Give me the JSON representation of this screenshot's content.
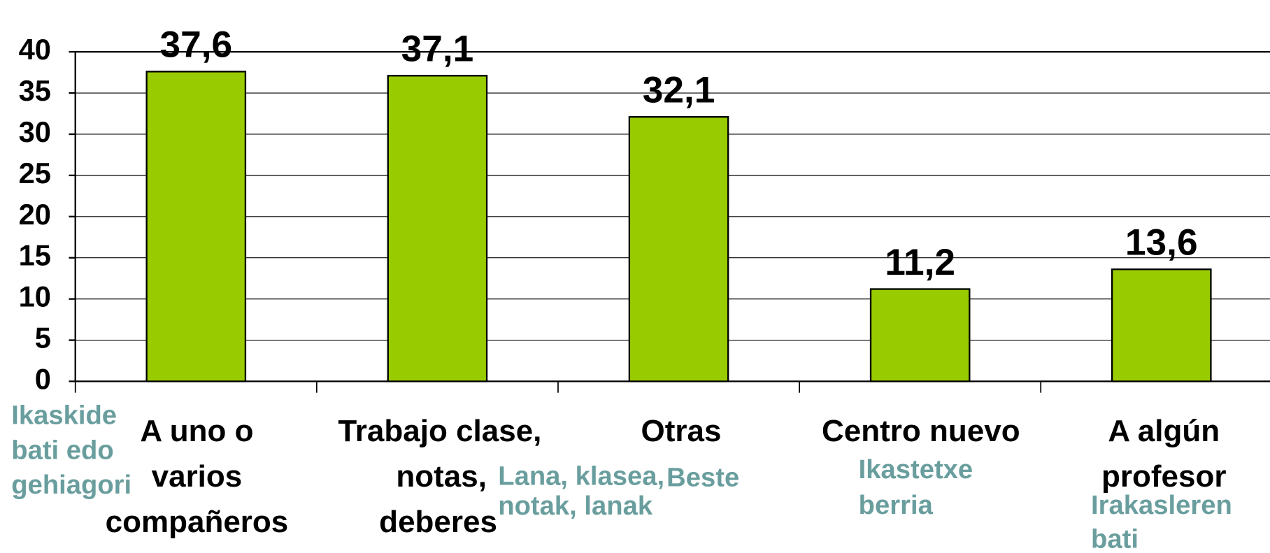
{
  "chart_data": {
    "type": "bar",
    "categories": [
      [
        "A uno o",
        "varios",
        "compañeros"
      ],
      [
        "Trabajo clase,",
        "notas,",
        "deberes"
      ],
      [
        "Otras"
      ],
      [
        "Centro nuevo"
      ],
      [
        "A algún",
        "profesor"
      ]
    ],
    "secondary_labels": [
      [
        "Ikaskide",
        "bati edo",
        "gehiagori"
      ],
      [
        "Lana, klasea,",
        "notak, lanak"
      ],
      [
        "Beste"
      ],
      [
        "Ikastetxe",
        "berria"
      ],
      [
        "Irakasleren",
        "bati"
      ]
    ],
    "values": [
      37.6,
      37.1,
      32.1,
      11.2,
      13.6
    ],
    "value_labels": [
      "37,6",
      "37,1",
      "32,1",
      "11,2",
      "13,6"
    ],
    "color": "#99cc00",
    "ylim": [
      0,
      40
    ],
    "yticks": [
      0,
      5,
      10,
      15,
      20,
      25,
      30,
      35,
      40
    ],
    "grid": true
  }
}
